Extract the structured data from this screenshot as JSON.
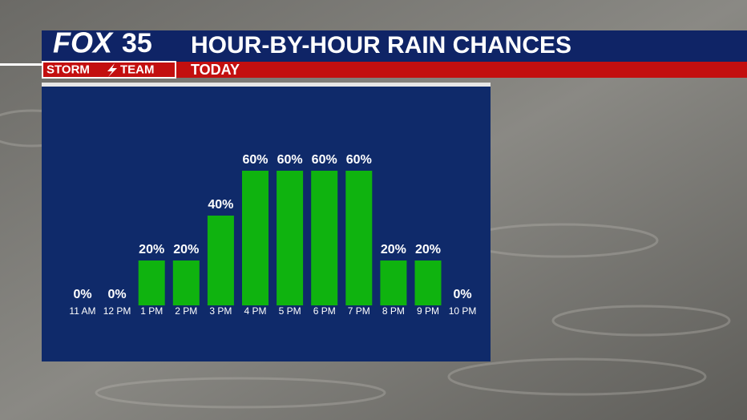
{
  "logo": {
    "brand": "FOX",
    "number": "35",
    "team_left": "STORM",
    "team_right": "TEAM"
  },
  "chart_data": {
    "type": "bar",
    "title": "HOUR-BY-HOUR RAIN CHANCES",
    "subtitle": "TODAY",
    "categories": [
      "11 AM",
      "12 PM",
      "1 PM",
      "2 PM",
      "3 PM",
      "4 PM",
      "5 PM",
      "6 PM",
      "7 PM",
      "8 PM",
      "9 PM",
      "10 PM"
    ],
    "values": [
      0,
      0,
      20,
      20,
      40,
      60,
      60,
      60,
      60,
      20,
      20,
      0
    ],
    "value_labels": [
      "0%",
      "0%",
      "20%",
      "20%",
      "40%",
      "60%",
      "60%",
      "60%",
      "60%",
      "20%",
      "20%",
      "0%"
    ],
    "color": "#0fb30f"
  }
}
